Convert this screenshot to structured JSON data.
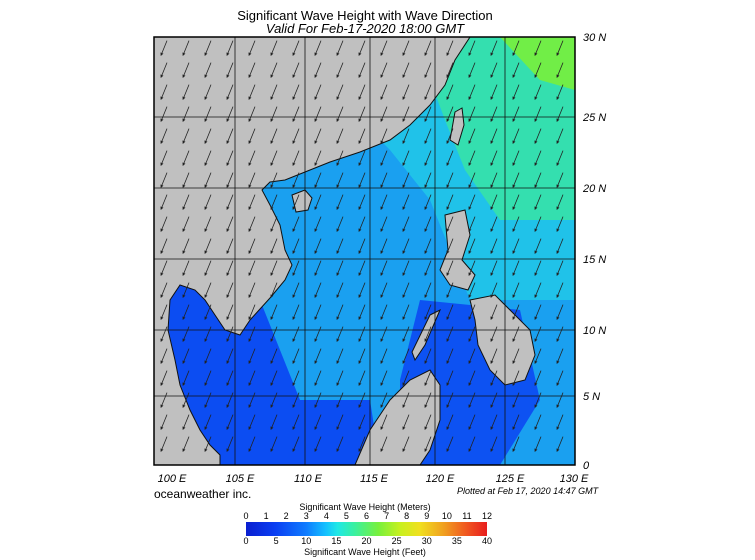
{
  "title": "Significant Wave Height with Wave Direction",
  "subtitle": "Valid For Feb-17-2020 18:00 GMT",
  "credit": "oceanweather inc.",
  "plotted": "Plotted at Feb 17, 2020 14:47 GMT",
  "map": {
    "lon_range": [
      100,
      130
    ],
    "lat_range": [
      0,
      30
    ],
    "lon_labels": [
      "100 E",
      "105 E",
      "110 E",
      "115 E",
      "120 E",
      "125 E",
      "130 E"
    ],
    "lat_labels": [
      "30 N",
      "25 N",
      "20 N",
      "15 N",
      "10 N",
      "5 N",
      "0"
    ],
    "land_color": "#c0c0c0",
    "ocean_color": "#1aa0f0",
    "arrow_direction": "toward south-southwest",
    "grid": true
  },
  "colorbar": {
    "title_top": "Significant Wave Height (Meters)",
    "title_bottom": "Significant Wave Height (Feet)",
    "meter_labels": [
      "0",
      "1",
      "2",
      "3",
      "4",
      "5",
      "6",
      "7",
      "8",
      "9",
      "10",
      "11",
      "12"
    ],
    "feet_labels": [
      "0",
      "5",
      "10",
      "15",
      "20",
      "25",
      "30",
      "35",
      "40"
    ],
    "colors": [
      "#0a1fd0",
      "#0f7cff",
      "#1fe8e6",
      "#78f03c",
      "#f0e020",
      "#f05a20",
      "#e81e1e"
    ]
  }
}
